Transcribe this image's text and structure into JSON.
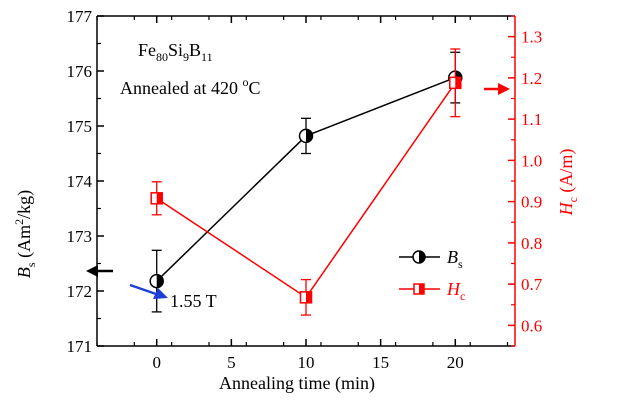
{
  "colors": {
    "left": "#000000",
    "right": "#ff0000",
    "annotation_arrow": "#1f3fd6",
    "background": "#ffffff"
  },
  "chart_data": {
    "type": "line",
    "title": "",
    "xlabel": "Annealing time (min)",
    "ylabel_left": {
      "main": "B",
      "sub": "s",
      "units_pre": " (Am",
      "sup": "2",
      "units_post": "/kg)"
    },
    "ylabel_right": {
      "main": "H",
      "sub": "c",
      "units": " (A/m)"
    },
    "x_ticks": [
      "0",
      "5",
      "10",
      "15",
      "20"
    ],
    "xlim": [
      -4,
      24
    ],
    "ylim_left": [
      171,
      177
    ],
    "ylim_right": [
      0.55,
      1.35
    ],
    "y_left_ticks": [
      "171",
      "172",
      "173",
      "174",
      "175",
      "176",
      "177"
    ],
    "y_right_ticks": [
      "0.6",
      "0.7",
      "0.8",
      "0.9",
      "1.0",
      "1.1",
      "1.2",
      "1.3"
    ],
    "grid": false,
    "series": [
      {
        "name": "Bs",
        "axis": "left",
        "color": "#000000",
        "marker": "half-filled-circle",
        "x": [
          0,
          10,
          20
        ],
        "y": [
          172.18,
          174.82,
          175.88
        ],
        "err": [
          0.56,
          0.32,
          0.46
        ]
      },
      {
        "name": "Hc",
        "axis": "right",
        "color": "#ff0000",
        "marker": "half-filled-square",
        "x": [
          0,
          10,
          20
        ],
        "y": [
          0.908,
          0.668,
          1.188
        ],
        "err": [
          0.04,
          0.043,
          0.082
        ]
      }
    ],
    "legend": {
      "position": "bottom-right",
      "entries": [
        {
          "main": "B",
          "sub": "s"
        },
        {
          "main": "H",
          "sub": "c"
        }
      ]
    },
    "annotations": {
      "composition": {
        "parts": [
          "Fe",
          "80",
          "Si",
          "9",
          "B",
          "11"
        ]
      },
      "condition": {
        "text_pre": "Annealed at 420 ",
        "sup": "o",
        "text_post": "C"
      },
      "value_label": "1.55 T"
    }
  }
}
